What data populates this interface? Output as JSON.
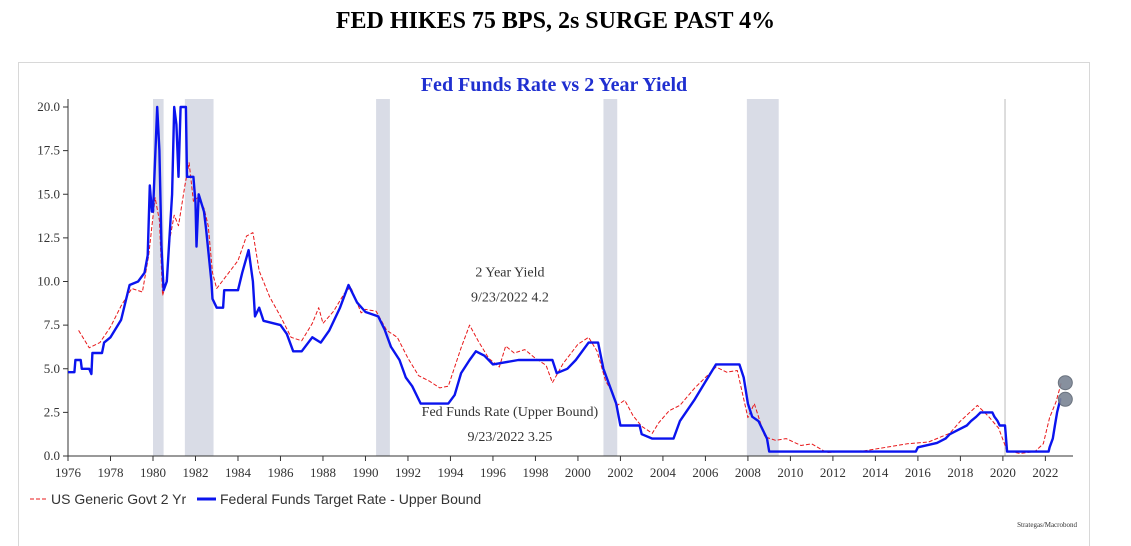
{
  "page_title": "FED HIKES 75 BPS, 2s SURGE PAST 4%",
  "source": "Strategas/Macrobond",
  "chart_data": {
    "type": "line",
    "title": "Fed Funds Rate vs 2 Year Yield",
    "xlabel": "",
    "ylabel": "",
    "xlim": [
      1976,
      2023.3
    ],
    "ylim": [
      0,
      20
    ],
    "x_ticks": [
      "1976",
      "1978",
      "1980",
      "1982",
      "1984",
      "1986",
      "1988",
      "1990",
      "1992",
      "1994",
      "1996",
      "1998",
      "2000",
      "2002",
      "2004",
      "2006",
      "2008",
      "2010",
      "2012",
      "2014",
      "2016",
      "2018",
      "2020",
      "2022"
    ],
    "y_ticks": [
      "0.0",
      "2.5",
      "5.0",
      "7.5",
      "10.0",
      "12.5",
      "15.0",
      "17.5",
      "20.0"
    ],
    "grid": false,
    "legend_position": "bottom-left",
    "recessions": [
      [
        1980.0,
        1980.5
      ],
      [
        1981.5,
        1982.85
      ],
      [
        1990.5,
        1991.15
      ],
      [
        2001.2,
        2001.85
      ],
      [
        2007.95,
        2009.45
      ],
      [
        2020.1,
        2020.3
      ]
    ],
    "annotations": [
      {
        "lines": [
          "2 Year Yield",
          "9/23/2022 4.2"
        ],
        "x": 1996.8,
        "y": 10.3
      },
      {
        "lines": [
          "Fed Funds Rate (Upper Bound)",
          "9/23/2022 3.25"
        ],
        "x": 1996.8,
        "y": 2.3
      }
    ],
    "end_markers": [
      {
        "x": 2022.75,
        "y": 4.2
      },
      {
        "x": 2022.75,
        "y": 3.25
      }
    ],
    "series": [
      {
        "name": "US Generic Govt 2 Yr",
        "color": "#e8191b",
        "style": "dashed",
        "points": [
          [
            1976.5,
            7.2
          ],
          [
            1977.0,
            6.2
          ],
          [
            1977.5,
            6.5
          ],
          [
            1978.0,
            7.4
          ],
          [
            1978.5,
            8.6
          ],
          [
            1979.0,
            9.6
          ],
          [
            1979.5,
            9.4
          ],
          [
            1979.8,
            11.5
          ],
          [
            1980.1,
            14.8
          ],
          [
            1980.3,
            13.5
          ],
          [
            1980.45,
            9.2
          ],
          [
            1980.6,
            9.8
          ],
          [
            1980.8,
            12.5
          ],
          [
            1981.0,
            13.8
          ],
          [
            1981.2,
            13.2
          ],
          [
            1981.5,
            15.5
          ],
          [
            1981.7,
            16.8
          ],
          [
            1981.9,
            14.6
          ],
          [
            1982.1,
            14.8
          ],
          [
            1982.4,
            14.2
          ],
          [
            1982.6,
            13.2
          ],
          [
            1982.8,
            10.5
          ],
          [
            1983.0,
            9.6
          ],
          [
            1983.5,
            10.4
          ],
          [
            1984.0,
            11.2
          ],
          [
            1984.4,
            12.6
          ],
          [
            1984.7,
            12.8
          ],
          [
            1985.0,
            10.6
          ],
          [
            1985.5,
            9.1
          ],
          [
            1986.0,
            8.0
          ],
          [
            1986.5,
            6.8
          ],
          [
            1987.0,
            6.6
          ],
          [
            1987.5,
            7.6
          ],
          [
            1987.8,
            8.5
          ],
          [
            1988.0,
            7.6
          ],
          [
            1988.5,
            8.3
          ],
          [
            1989.0,
            9.3
          ],
          [
            1989.3,
            9.7
          ],
          [
            1989.8,
            8.2
          ],
          [
            1990.0,
            8.4
          ],
          [
            1990.5,
            8.3
          ],
          [
            1991.0,
            7.2
          ],
          [
            1991.5,
            6.8
          ],
          [
            1992.0,
            5.6
          ],
          [
            1992.5,
            4.6
          ],
          [
            1993.0,
            4.3
          ],
          [
            1993.5,
            3.9
          ],
          [
            1993.9,
            4.0
          ],
          [
            1994.5,
            6.2
          ],
          [
            1994.9,
            7.5
          ],
          [
            1995.3,
            6.6
          ],
          [
            1995.8,
            5.6
          ],
          [
            1996.3,
            5.1
          ],
          [
            1996.6,
            6.3
          ],
          [
            1997.0,
            5.9
          ],
          [
            1997.5,
            6.1
          ],
          [
            1998.0,
            5.6
          ],
          [
            1998.5,
            5.2
          ],
          [
            1998.8,
            4.2
          ],
          [
            1999.3,
            5.3
          ],
          [
            2000.0,
            6.4
          ],
          [
            2000.5,
            6.8
          ],
          [
            2000.9,
            6.0
          ],
          [
            2001.3,
            4.3
          ],
          [
            2001.6,
            3.7
          ],
          [
            2001.85,
            2.9
          ],
          [
            2002.2,
            3.2
          ],
          [
            2002.6,
            2.3
          ],
          [
            2003.0,
            1.7
          ],
          [
            2003.5,
            1.3
          ],
          [
            2003.8,
            1.9
          ],
          [
            2004.3,
            2.6
          ],
          [
            2004.8,
            2.9
          ],
          [
            2005.5,
            3.9
          ],
          [
            2006.0,
            4.5
          ],
          [
            2006.5,
            5.1
          ],
          [
            2007.0,
            4.8
          ],
          [
            2007.5,
            4.9
          ],
          [
            2008.0,
            2.2
          ],
          [
            2008.3,
            3.0
          ],
          [
            2008.8,
            1.1
          ],
          [
            2009.3,
            0.9
          ],
          [
            2009.8,
            1.0
          ],
          [
            2010.5,
            0.6
          ],
          [
            2011.0,
            0.7
          ],
          [
            2011.7,
            0.2
          ],
          [
            2012.5,
            0.25
          ],
          [
            2013.5,
            0.3
          ],
          [
            2014.5,
            0.5
          ],
          [
            2015.5,
            0.7
          ],
          [
            2016.5,
            0.8
          ],
          [
            2017.5,
            1.3
          ],
          [
            2018.0,
            2.0
          ],
          [
            2018.8,
            2.9
          ],
          [
            2019.3,
            2.3
          ],
          [
            2019.8,
            1.6
          ],
          [
            2020.2,
            0.3
          ],
          [
            2020.8,
            0.15
          ],
          [
            2021.5,
            0.25
          ],
          [
            2021.9,
            0.7
          ],
          [
            2022.2,
            2.2
          ],
          [
            2022.5,
            3.1
          ],
          [
            2022.75,
            4.2
          ]
        ]
      },
      {
        "name": "Federal Funds Target Rate - Upper Bound",
        "color": "#0b14ee",
        "style": "solid",
        "points": [
          [
            1976.0,
            4.8
          ],
          [
            1976.3,
            4.8
          ],
          [
            1976.35,
            5.5
          ],
          [
            1976.6,
            5.5
          ],
          [
            1976.65,
            5.0
          ],
          [
            1977.0,
            5.0
          ],
          [
            1977.1,
            4.7
          ],
          [
            1977.15,
            5.9
          ],
          [
            1977.6,
            5.9
          ],
          [
            1977.7,
            6.5
          ],
          [
            1978.0,
            6.8
          ],
          [
            1978.5,
            7.8
          ],
          [
            1978.9,
            9.8
          ],
          [
            1979.3,
            10.0
          ],
          [
            1979.6,
            10.5
          ],
          [
            1979.75,
            11.5
          ],
          [
            1979.85,
            15.5
          ],
          [
            1979.95,
            14.0
          ],
          [
            1980.0,
            14.0
          ],
          [
            1980.2,
            20.0
          ],
          [
            1980.3,
            17.5
          ],
          [
            1980.4,
            12.0
          ],
          [
            1980.5,
            9.5
          ],
          [
            1980.65,
            10.0
          ],
          [
            1980.9,
            15.0
          ],
          [
            1981.0,
            20.0
          ],
          [
            1981.1,
            19.0
          ],
          [
            1981.2,
            16.0
          ],
          [
            1981.3,
            20.0
          ],
          [
            1981.55,
            20.0
          ],
          [
            1981.6,
            16.0
          ],
          [
            1981.9,
            16.0
          ],
          [
            1982.0,
            14.5
          ],
          [
            1982.05,
            12.0
          ],
          [
            1982.15,
            15.0
          ],
          [
            1982.4,
            14.0
          ],
          [
            1982.5,
            13.0
          ],
          [
            1982.75,
            10.0
          ],
          [
            1982.8,
            9.0
          ],
          [
            1983.0,
            8.5
          ],
          [
            1983.3,
            8.5
          ],
          [
            1983.35,
            9.5
          ],
          [
            1984.0,
            9.5
          ],
          [
            1984.2,
            10.5
          ],
          [
            1984.5,
            11.8
          ],
          [
            1984.7,
            10.0
          ],
          [
            1984.8,
            8.0
          ],
          [
            1985.0,
            8.5
          ],
          [
            1985.2,
            7.75
          ],
          [
            1986.0,
            7.5
          ],
          [
            1986.3,
            7.0
          ],
          [
            1986.6,
            6.0
          ],
          [
            1987.0,
            6.0
          ],
          [
            1987.5,
            6.8
          ],
          [
            1987.9,
            6.5
          ],
          [
            1988.3,
            7.2
          ],
          [
            1988.8,
            8.5
          ],
          [
            1989.2,
            9.8
          ],
          [
            1989.6,
            8.8
          ],
          [
            1990.0,
            8.25
          ],
          [
            1990.6,
            8.0
          ],
          [
            1990.9,
            7.25
          ],
          [
            1991.2,
            6.25
          ],
          [
            1991.6,
            5.5
          ],
          [
            1991.9,
            4.5
          ],
          [
            1992.2,
            4.0
          ],
          [
            1992.6,
            3.0
          ],
          [
            1993.9,
            3.0
          ],
          [
            1994.2,
            3.5
          ],
          [
            1994.5,
            4.75
          ],
          [
            1994.9,
            5.5
          ],
          [
            1995.2,
            6.0
          ],
          [
            1995.6,
            5.75
          ],
          [
            1996.0,
            5.25
          ],
          [
            1997.2,
            5.5
          ],
          [
            1998.8,
            5.5
          ],
          [
            1999.0,
            4.75
          ],
          [
            1999.5,
            5.0
          ],
          [
            1999.9,
            5.5
          ],
          [
            2000.5,
            6.5
          ],
          [
            2000.95,
            6.5
          ],
          [
            2001.2,
            5.0
          ],
          [
            2001.5,
            4.0
          ],
          [
            2001.8,
            3.0
          ],
          [
            2002.0,
            1.75
          ],
          [
            2002.9,
            1.75
          ],
          [
            2003.0,
            1.25
          ],
          [
            2003.5,
            1.0
          ],
          [
            2004.5,
            1.0
          ],
          [
            2004.8,
            2.0
          ],
          [
            2005.5,
            3.25
          ],
          [
            2006.0,
            4.25
          ],
          [
            2006.5,
            5.25
          ],
          [
            2007.6,
            5.25
          ],
          [
            2007.8,
            4.5
          ],
          [
            2008.0,
            3.0
          ],
          [
            2008.2,
            2.25
          ],
          [
            2008.5,
            2.0
          ],
          [
            2008.9,
            1.0
          ],
          [
            2009.0,
            0.25
          ],
          [
            2015.9,
            0.25
          ],
          [
            2016.0,
            0.5
          ],
          [
            2016.9,
            0.75
          ],
          [
            2017.3,
            1.0
          ],
          [
            2017.5,
            1.25
          ],
          [
            2017.9,
            1.5
          ],
          [
            2018.3,
            1.75
          ],
          [
            2018.5,
            2.0
          ],
          [
            2018.75,
            2.25
          ],
          [
            2018.95,
            2.5
          ],
          [
            2019.5,
            2.5
          ],
          [
            2019.6,
            2.25
          ],
          [
            2019.75,
            2.0
          ],
          [
            2019.85,
            1.75
          ],
          [
            2020.1,
            1.75
          ],
          [
            2020.2,
            0.25
          ],
          [
            2022.15,
            0.25
          ],
          [
            2022.2,
            0.5
          ],
          [
            2022.35,
            1.0
          ],
          [
            2022.45,
            1.75
          ],
          [
            2022.55,
            2.5
          ],
          [
            2022.7,
            3.25
          ],
          [
            2022.75,
            3.25
          ]
        ]
      }
    ]
  }
}
